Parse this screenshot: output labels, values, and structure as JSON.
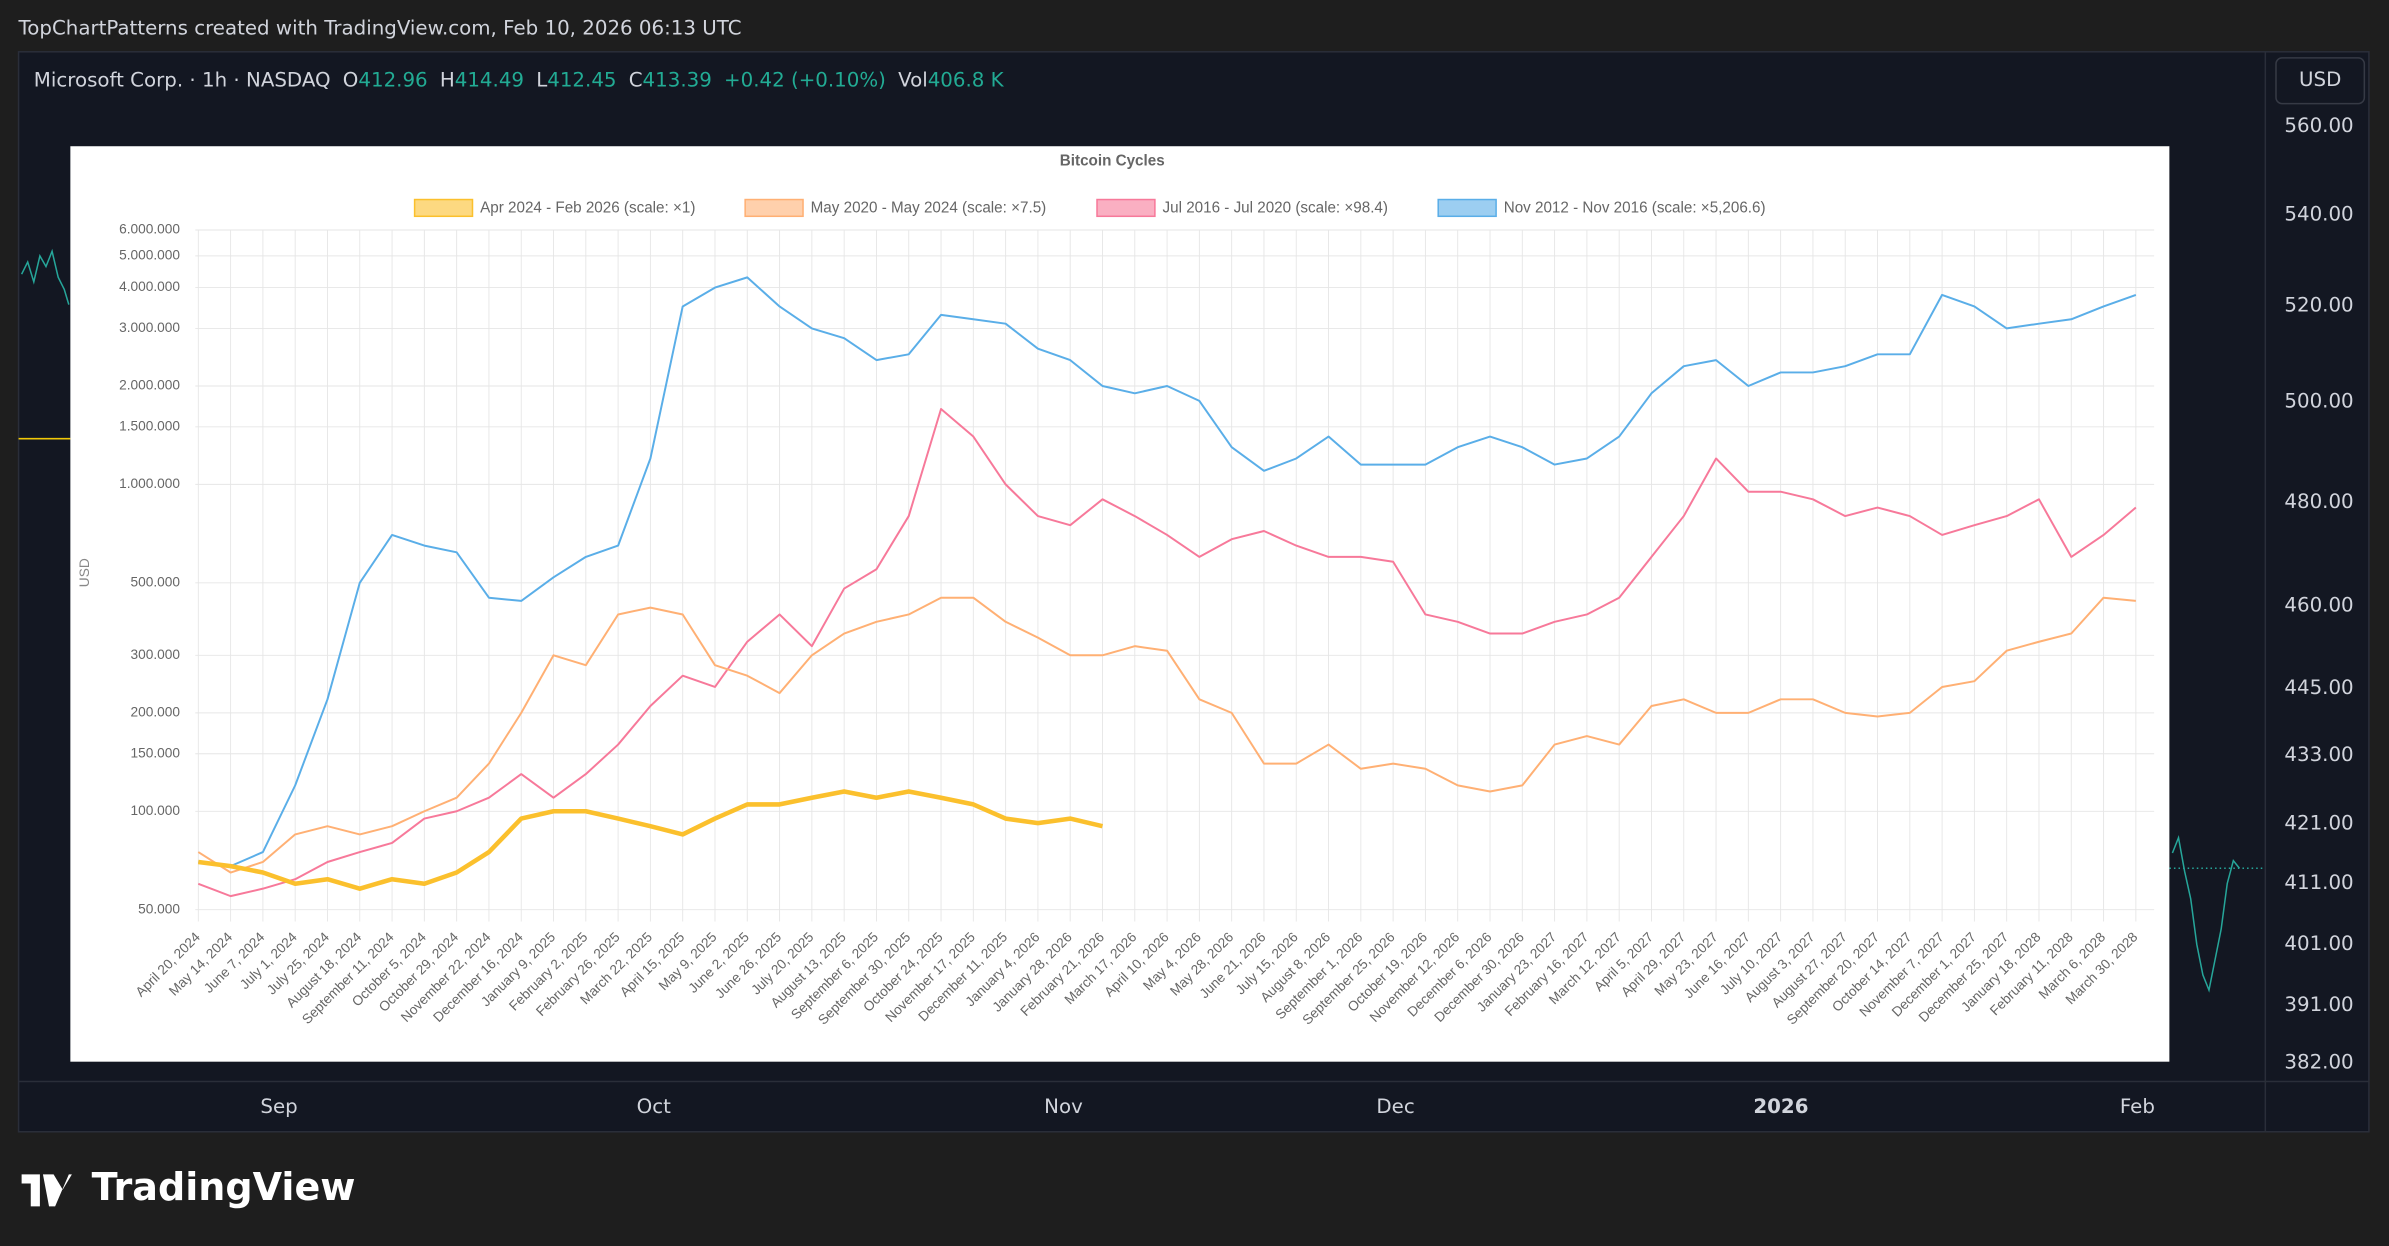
{
  "header": {
    "text": "TopChartPatterns created with TradingView.com, Feb 10, 2026 06:13 UTC"
  },
  "symbol": {
    "name": "Microsoft Corp. · 1h · NASDAQ",
    "ohlc": [
      {
        "label": "O",
        "value": "412.96"
      },
      {
        "label": "H",
        "value": "414.49"
      },
      {
        "label": "L",
        "value": "412.45"
      },
      {
        "label": "C",
        "value": "413.39"
      }
    ],
    "change": "+0.42 (+0.10%)",
    "volume": {
      "label": "Vol",
      "value": "406.8 K"
    }
  },
  "currency_button": "USD",
  "price_axis": [
    "560.00",
    "540.00",
    "520.00",
    "500.00",
    "480.00",
    "460.00",
    "445.00",
    "433.00",
    "421.00",
    "411.00",
    "401.00",
    "391.00",
    "382.00"
  ],
  "time_axis": [
    "Sep",
    "Oct",
    "Nov",
    "Dec",
    "2026",
    "Feb"
  ],
  "logo": "TradingView",
  "chart_data": {
    "type": "line",
    "title": "Bitcoin Cycles",
    "y_label": "USD",
    "yscale": "log",
    "grid": true,
    "legend": "top",
    "categories": [
      "April 20, 2024",
      "May 14, 2024",
      "June 7, 2024",
      "July 1, 2024",
      "July 25, 2024",
      "August 18, 2024",
      "September 11, 2024",
      "October 5, 2024",
      "October 29, 2024",
      "November 22, 2024",
      "December 16, 2024",
      "January 9, 2025",
      "February 2, 2025",
      "February 26, 2025",
      "March 22, 2025",
      "April 15, 2025",
      "May 9, 2025",
      "June 2, 2025",
      "June 26, 2025",
      "July 20, 2025",
      "August 13, 2025",
      "September 6, 2025",
      "September 30, 2025",
      "October 24, 2025",
      "November 17, 2025",
      "December 11, 2025",
      "January 4, 2026",
      "January 28, 2026",
      "February 21, 2026",
      "March 17, 2026",
      "April 10, 2026",
      "May 4, 2026",
      "May 28, 2026",
      "June 21, 2026",
      "July 15, 2026",
      "August 8, 2026",
      "September 1, 2026",
      "September 25, 2026",
      "October 19, 2026",
      "November 12, 2026",
      "December 6, 2026",
      "December 30, 2026",
      "January 23, 2027",
      "February 16, 2027",
      "March 12, 2027",
      "April 5, 2027",
      "April 29, 2027",
      "May 23, 2027",
      "June 16, 2027",
      "July 10, 2027",
      "August 3, 2027",
      "August 27, 2027",
      "September 20, 2027",
      "October 14, 2027",
      "November 7, 2027",
      "December 1, 2027",
      "December 25, 2027",
      "January 18, 2028",
      "February 11, 2028",
      "March 6, 2028",
      "March 30, 2028"
    ],
    "ylim": [
      46000,
      6000000
    ],
    "yticks": [
      {
        "value": 50000,
        "label": "50.000"
      },
      {
        "value": 100000,
        "label": "100.000"
      },
      {
        "value": 150000,
        "label": "150.000"
      },
      {
        "value": 200000,
        "label": "200.000"
      },
      {
        "value": 300000,
        "label": "300.000"
      },
      {
        "value": 500000,
        "label": "500.000"
      },
      {
        "value": 1000000,
        "label": "1.000.000"
      },
      {
        "value": 1500000,
        "label": "1.500.000"
      },
      {
        "value": 2000000,
        "label": "2.000.000"
      },
      {
        "value": 3000000,
        "label": "3.000.000"
      },
      {
        "value": 4000000,
        "label": "4.000.000"
      },
      {
        "value": 5000000,
        "label": "5.000.000"
      },
      {
        "value": 6000000,
        "label": "6.000.000"
      }
    ],
    "series": [
      {
        "name": "Apr 2024 - Feb 2026 (scale: ×1)",
        "color": "#fbc02d",
        "values": [
          70000,
          68000,
          65000,
          60000,
          62000,
          58000,
          62000,
          60000,
          65000,
          75000,
          95000,
          100000,
          100000,
          95000,
          90000,
          85000,
          95000,
          105000,
          105000,
          110000,
          115000,
          110000,
          115000,
          110000,
          105000,
          95000,
          92000,
          95000,
          90000,
          null,
          null,
          null,
          null,
          null,
          null,
          null,
          null,
          null,
          null,
          null,
          null,
          null,
          null,
          null,
          null,
          null,
          null,
          null,
          null,
          null,
          null,
          null,
          null,
          null,
          null,
          null,
          null,
          null,
          null,
          null,
          null
        ]
      },
      {
        "name": "May 2020 - May 2024 (scale: ×7.5)",
        "color": "#ffb074",
        "values": [
          75000,
          65000,
          70000,
          85000,
          90000,
          85000,
          90000,
          100000,
          110000,
          140000,
          200000,
          300000,
          280000,
          400000,
          420000,
          400000,
          280000,
          260000,
          230000,
          300000,
          350000,
          380000,
          400000,
          450000,
          450000,
          380000,
          340000,
          300000,
          300000,
          320000,
          310000,
          220000,
          200000,
          140000,
          140000,
          160000,
          135000,
          140000,
          135000,
          120000,
          115000,
          120000,
          160000,
          170000,
          160000,
          210000,
          220000,
          200000,
          200000,
          220000,
          220000,
          200000,
          195000,
          200000,
          240000,
          250000,
          310000,
          330000,
          350000,
          450000,
          440000
        ]
      },
      {
        "name": "Jul 2016 - Jul 2020 (scale: ×98.4)",
        "color": "#f7799a",
        "values": [
          60000,
          55000,
          58000,
          62000,
          70000,
          75000,
          80000,
          95000,
          100000,
          110000,
          130000,
          110000,
          130000,
          160000,
          210000,
          260000,
          240000,
          330000,
          400000,
          320000,
          480000,
          550000,
          800000,
          1700000,
          1400000,
          1000000,
          800000,
          750000,
          900000,
          800000,
          700000,
          600000,
          680000,
          720000,
          650000,
          600000,
          600000,
          580000,
          400000,
          380000,
          350000,
          350000,
          380000,
          400000,
          450000,
          600000,
          800000,
          1200000,
          950000,
          950000,
          900000,
          800000,
          850000,
          800000,
          700000,
          750000,
          800000,
          900000,
          600000,
          700000,
          850000
        ]
      },
      {
        "name": "Nov 2012 - Nov 2016 (scale: ×5,206.6)",
        "color": "#5aaee8",
        "values": [
          70000,
          68000,
          75000,
          120000,
          220000,
          500000,
          700000,
          650000,
          620000,
          450000,
          440000,
          520000,
          600000,
          650000,
          1200000,
          3500000,
          4000000,
          4300000,
          3500000,
          3000000,
          2800000,
          2400000,
          2500000,
          3300000,
          3200000,
          3100000,
          2600000,
          2400000,
          2000000,
          1900000,
          2000000,
          1800000,
          1300000,
          1100000,
          1200000,
          1400000,
          1150000,
          1150000,
          1150000,
          1300000,
          1400000,
          1300000,
          1150000,
          1200000,
          1400000,
          1900000,
          2300000,
          2400000,
          2000000,
          2200000,
          2200000,
          2300000,
          2500000,
          2500000,
          3800000,
          3500000,
          3000000,
          3100000,
          3200000,
          3500000,
          3800000
        ]
      }
    ]
  }
}
